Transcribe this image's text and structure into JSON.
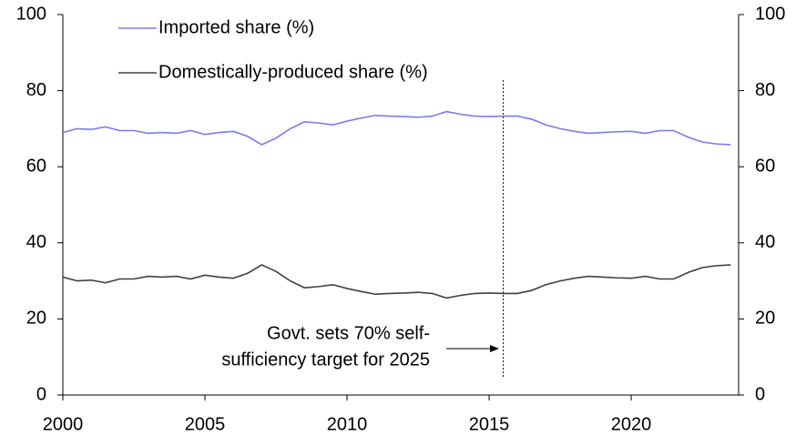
{
  "chart_data": {
    "type": "line",
    "x": [
      2000,
      2000.5,
      2001,
      2001.5,
      2002,
      2002.5,
      2003,
      2003.5,
      2004,
      2004.5,
      2005,
      2005.5,
      2006,
      2006.5,
      2007,
      2007.5,
      2008,
      2008.5,
      2009,
      2009.5,
      2010,
      2010.5,
      2011,
      2011.5,
      2012,
      2012.5,
      2013,
      2013.5,
      2014,
      2014.5,
      2015,
      2015.5,
      2016,
      2016.5,
      2017,
      2017.5,
      2018,
      2018.5,
      2019,
      2019.5,
      2020,
      2020.5,
      2021,
      2021.5,
      2022,
      2022.5,
      2023,
      2023.5
    ],
    "series": [
      {
        "name": "Imported share (%)",
        "color": "#7b7bee",
        "values": [
          69,
          70,
          69.8,
          70.5,
          69.5,
          69.5,
          68.8,
          69,
          68.8,
          69.5,
          68.5,
          69,
          69.3,
          68,
          65.8,
          67.5,
          70,
          71.8,
          71.5,
          71,
          72,
          72.8,
          73.5,
          73.3,
          73.2,
          73,
          73.3,
          74.5,
          73.8,
          73.3,
          73.2,
          73.3,
          73.3,
          72.5,
          71,
          70,
          69.3,
          68.8,
          69,
          69.2,
          69.3,
          68.8,
          69.5,
          69.5,
          67.8,
          66.5,
          66,
          65.8
        ]
      },
      {
        "name": "Domestically-produced share (%)",
        "color": "#404040",
        "values": [
          31,
          30,
          30.2,
          29.5,
          30.5,
          30.5,
          31.2,
          31,
          31.2,
          30.5,
          31.5,
          31,
          30.7,
          32,
          34.2,
          32.5,
          30,
          28.2,
          28.5,
          29,
          28,
          27.2,
          26.5,
          26.7,
          26.8,
          27,
          26.7,
          25.5,
          26.2,
          26.7,
          26.8,
          26.7,
          26.7,
          27.5,
          29,
          30,
          30.7,
          31.2,
          31,
          30.8,
          30.7,
          31.2,
          30.5,
          30.5,
          32.2,
          33.5,
          34,
          34.2
        ]
      }
    ],
    "xlim": [
      2000,
      2023.78
    ],
    "xticks": [
      2000,
      2005,
      2010,
      2015,
      2020
    ],
    "ylim": [
      0,
      100
    ],
    "yticks": [
      0,
      20,
      40,
      60,
      80,
      100
    ],
    "y2lim": [
      0,
      100
    ],
    "y2ticks": [
      0,
      20,
      40,
      60,
      80,
      100
    ],
    "legend": "top-left",
    "annotation": {
      "lines": [
        "Govt. sets 70% self-",
        "sufficiency target for 2025"
      ],
      "x": 2015.5
    }
  }
}
